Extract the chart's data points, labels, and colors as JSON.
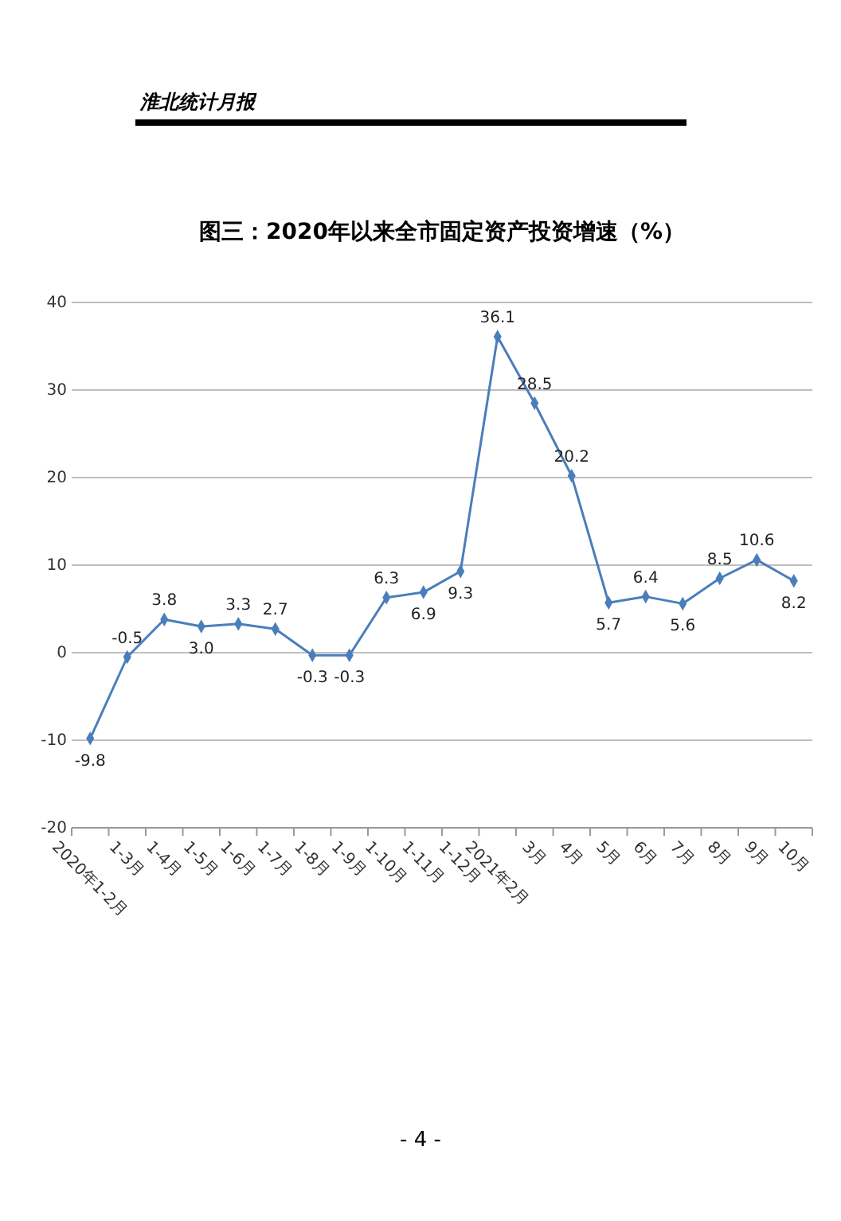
{
  "chart_data": {
    "type": "line",
    "title": "图三：2020年以来全市固定资产投资增速（%）",
    "categories": [
      "2020年1-2月",
      "1-3月",
      "1-4月",
      "1-5月",
      "1-6月",
      "1-7月",
      "1-8月",
      "1-9月",
      "1-10月",
      "1-11月",
      "1-12月",
      "2021年2月",
      "3月",
      "4月",
      "5月",
      "6月",
      "7月",
      "8月",
      "9月",
      "10月"
    ],
    "series": [
      {
        "color": "#4a7ebb",
        "values": [
          -9.8,
          -0.5,
          3.8,
          3.0,
          3.3,
          2.7,
          -0.3,
          -0.3,
          6.3,
          6.9,
          9.3,
          36.1,
          28.5,
          20.2,
          5.7,
          6.4,
          5.6,
          8.5,
          10.6,
          8.2
        ]
      }
    ],
    "ylim": [
      -20,
      40
    ],
    "yticks": [
      -20,
      -10,
      0,
      10,
      20,
      30,
      40
    ],
    "value_labels": [
      "-9.8",
      "-0.5",
      "3.8",
      "3.0",
      "3.3",
      "2.7",
      "-0.3",
      "-0.3",
      "6.3",
      "6.9",
      "9.3",
      "36.1",
      "28.5",
      "20.2",
      "5.7",
      "6.4",
      "5.6",
      "8.5",
      "10.6",
      "8.2"
    ],
    "grid": "y",
    "marker": "diamond",
    "annotations": [
      "淮北统计月报",
      "- 4 -"
    ]
  }
}
